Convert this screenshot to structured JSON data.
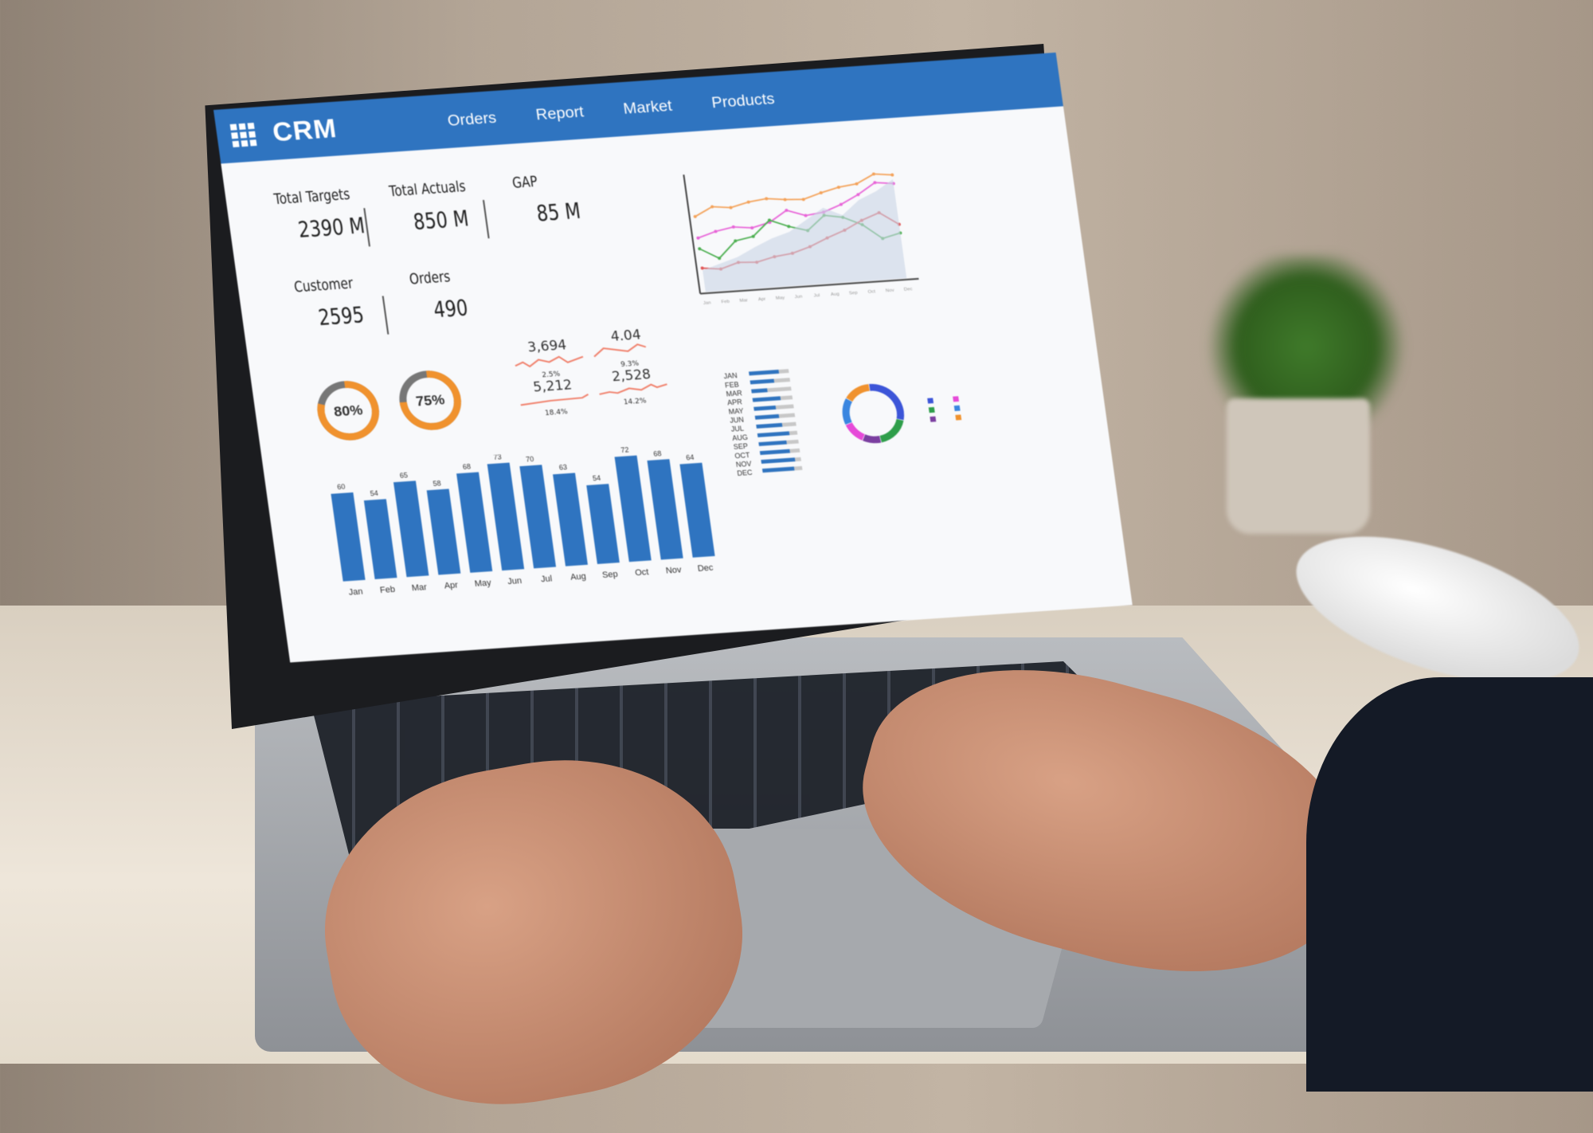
{
  "app": {
    "title": "CRM",
    "menu_icon": "grid-icon"
  },
  "nav": [
    "Orders",
    "Report",
    "Market",
    "Products"
  ],
  "kpis": {
    "total_targets": {
      "label": "Total Targets",
      "value": "2390 M"
    },
    "total_actuals": {
      "label": "Total Actuals",
      "value": "850 M"
    },
    "gap": {
      "label": "GAP",
      "value": "85 M"
    },
    "customer": {
      "label": "Customer",
      "value": "2595"
    },
    "orders": {
      "label": "Orders",
      "value": "490"
    }
  },
  "gauges": [
    {
      "label": "80%",
      "value": 80,
      "color": "#f0922e"
    },
    {
      "label": "75%",
      "value": 75,
      "color": "#f0922e"
    }
  ],
  "sparklines": [
    {
      "value": "3,694",
      "change": "2.5%"
    },
    {
      "value": "5,212",
      "change": "18.4%"
    },
    {
      "value": "4.04",
      "change": "9.3%"
    },
    {
      "value": "2,528",
      "change": "14.2%"
    }
  ],
  "colors": {
    "accent": "#2f74c0",
    "bar": "#2f74c0",
    "gauge": "#f0922e",
    "spark": "#f07f6a"
  },
  "chart_data": [
    {
      "type": "bar",
      "categories": [
        "Jan",
        "Feb",
        "Mar",
        "Apr",
        "May",
        "Jun",
        "Jul",
        "Aug",
        "Sep",
        "Oct",
        "Nov",
        "Dec"
      ],
      "values": [
        60,
        54,
        65,
        58,
        68,
        73,
        70,
        63,
        54,
        72,
        68,
        64
      ]
    },
    {
      "type": "line",
      "categories": [
        "Jan",
        "Feb",
        "Mar",
        "Apr",
        "May",
        "Jun",
        "Jul",
        "Aug",
        "Sep",
        "Oct",
        "Nov",
        "Dec"
      ],
      "series": [
        {
          "color": "#f4a259",
          "values": [
            70,
            78,
            76,
            80,
            82,
            80,
            79,
            84,
            88,
            90,
            98,
            96
          ]
        },
        {
          "color": "#e864d8",
          "values": [
            50,
            55,
            58,
            56,
            60,
            70,
            64,
            66,
            72,
            80,
            90,
            88
          ]
        },
        {
          "color": "#4caf50",
          "values": [
            40,
            30,
            45,
            48,
            62,
            55,
            50,
            63,
            60,
            52,
            38,
            42
          ]
        },
        {
          "color": "#e05555",
          "values": [
            22,
            20,
            25,
            24,
            28,
            30,
            35,
            42,
            48,
            56,
            62,
            50
          ]
        },
        {
          "color": "#c9d3e6",
          "values": [
            20,
            25,
            30,
            38,
            45,
            50,
            60,
            70,
            62,
            75,
            82,
            92
          ],
          "area": true
        }
      ]
    },
    {
      "type": "bar",
      "orientation": "horizontal",
      "categories": [
        "JAN",
        "FEB",
        "MAR",
        "APR",
        "MAY",
        "JUN",
        "JUL",
        "AUG",
        "SEP",
        "OCT",
        "NOV",
        "DEC"
      ],
      "values": [
        75,
        60,
        40,
        70,
        55,
        60,
        65,
        80,
        70,
        75,
        85,
        80
      ],
      "max": 100
    },
    {
      "type": "pie",
      "donut": true,
      "values": [
        30,
        18,
        10,
        12,
        15,
        15
      ],
      "colors": [
        "#3c55d8",
        "#2e9e4a",
        "#7b3fa0",
        "#e64ad8",
        "#3a86e0",
        "#f0922e"
      ]
    }
  ]
}
